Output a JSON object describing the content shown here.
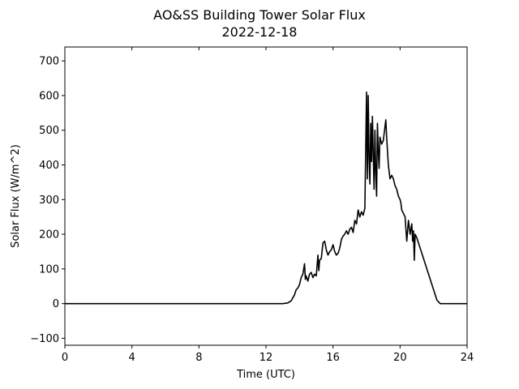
{
  "chart_data": {
    "type": "line",
    "title": "AO&SS Building Tower Solar Flux",
    "subtitle": "2022-12-18",
    "xlabel": "Time (UTC)",
    "ylabel": "Solar Flux (W/m^2)",
    "xlim": [
      0,
      24
    ],
    "ylim": [
      -120,
      740
    ],
    "x_ticks": [
      0,
      4,
      8,
      12,
      16,
      20,
      24
    ],
    "y_ticks": [
      -100,
      0,
      100,
      200,
      300,
      400,
      500,
      600,
      700
    ],
    "grid": false,
    "line_color": "#000000",
    "series": [
      {
        "x": [
          0,
          12.5,
          13.0,
          13.3,
          13.5,
          13.7,
          13.8,
          13.9,
          14.0,
          14.1,
          14.2,
          14.3,
          14.35,
          14.4,
          14.5,
          14.6,
          14.7,
          14.8,
          14.9,
          15.0,
          15.1,
          15.15,
          15.2,
          15.3,
          15.4,
          15.5,
          15.6,
          15.7,
          15.8,
          15.9,
          16.0,
          16.1,
          16.2,
          16.3,
          16.4,
          16.5,
          16.6,
          16.7,
          16.8,
          16.9,
          17.0,
          17.1,
          17.2,
          17.3,
          17.4,
          17.5,
          17.6,
          17.7,
          17.8,
          17.9,
          18.0,
          18.05,
          18.1,
          18.15,
          18.2,
          18.25,
          18.3,
          18.35,
          18.4,
          18.45,
          18.5,
          18.55,
          18.6,
          18.65,
          18.7,
          18.75,
          18.8,
          18.9,
          19.0,
          19.1,
          19.15,
          19.2,
          19.3,
          19.4,
          19.5,
          19.6,
          19.7,
          19.8,
          19.9,
          20.0,
          20.05,
          20.1,
          20.2,
          20.3,
          20.4,
          20.5,
          20.55,
          20.6,
          20.7,
          20.75,
          20.8,
          20.85,
          20.9,
          21.0,
          21.2,
          21.4,
          21.6,
          21.8,
          22.0,
          22.2,
          22.4,
          22.5,
          22.6,
          24
        ],
        "y": [
          0,
          0,
          0,
          2,
          8,
          25,
          40,
          45,
          55,
          75,
          85,
          115,
          70,
          80,
          65,
          85,
          90,
          75,
          85,
          80,
          140,
          95,
          125,
          130,
          175,
          180,
          155,
          140,
          150,
          155,
          170,
          150,
          140,
          145,
          160,
          185,
          195,
          200,
          210,
          200,
          215,
          220,
          205,
          240,
          230,
          270,
          250,
          265,
          255,
          275,
          610,
          360,
          600,
          420,
          345,
          520,
          410,
          540,
          430,
          330,
          500,
          380,
          310,
          520,
          440,
          390,
          480,
          460,
          470,
          510,
          530,
          480,
          400,
          360,
          370,
          360,
          340,
          330,
          310,
          300,
          290,
          270,
          260,
          250,
          180,
          240,
          220,
          200,
          230,
          180,
          210,
          125,
          200,
          190,
          160,
          130,
          100,
          70,
          40,
          10,
          0,
          0,
          0,
          0
        ]
      }
    ]
  }
}
